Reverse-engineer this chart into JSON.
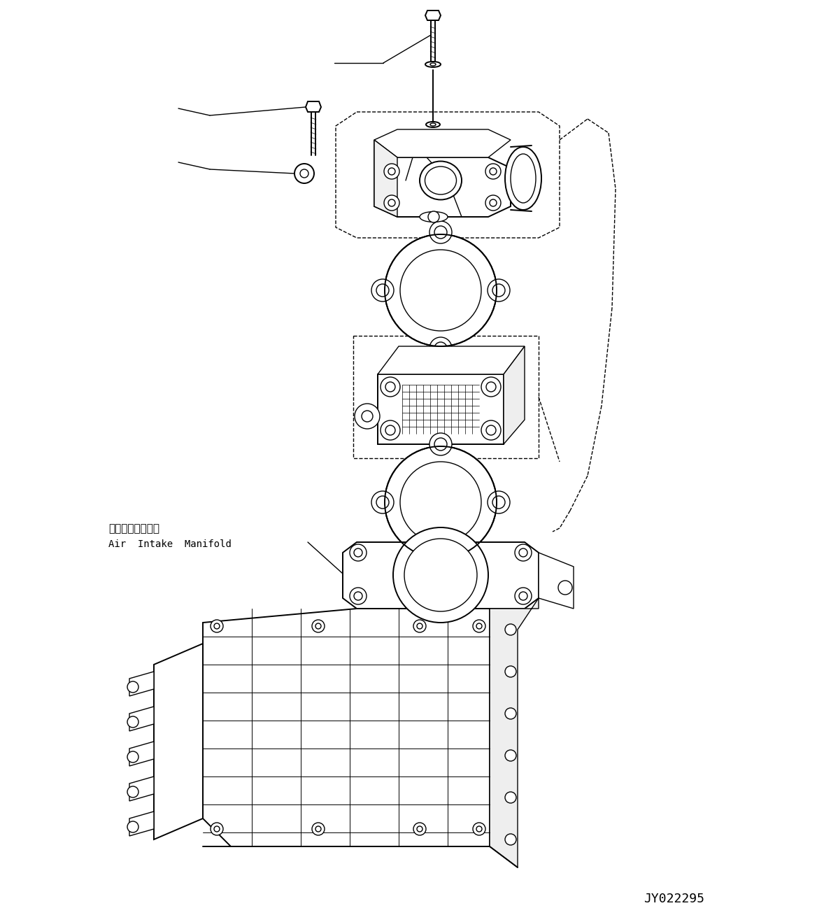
{
  "background_color": "#ffffff",
  "line_color": "#000000",
  "label_japanese": "吸気マニホールド",
  "label_english": "Air  Intake  Manifold",
  "part_number": "JY022295",
  "fig_width": 11.68,
  "fig_height": 13.18,
  "dpi": 100
}
